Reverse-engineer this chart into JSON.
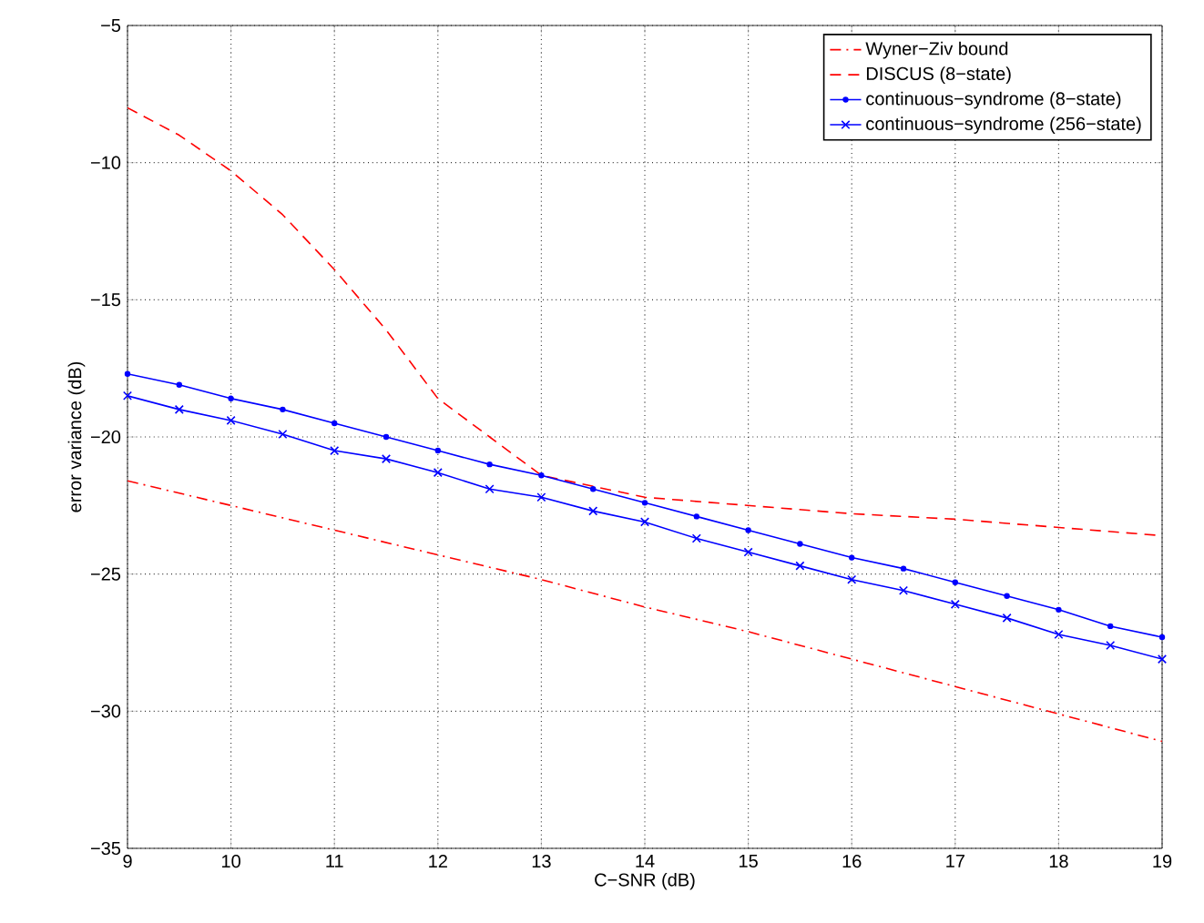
{
  "chart_data": {
    "type": "line",
    "xlabel": "C−SNR (dB)",
    "ylabel": "error variance (dB)",
    "xlim": [
      9,
      19
    ],
    "xticks": [
      9,
      10,
      11,
      12,
      13,
      14,
      15,
      16,
      17,
      18,
      19
    ],
    "ylim": [
      -35,
      -5
    ],
    "yticks": [
      {
        "value": -35,
        "label": "−35"
      },
      {
        "value": -30,
        "label": "−30"
      },
      {
        "value": -25,
        "label": "−25"
      },
      {
        "value": -20,
        "label": "−20"
      },
      {
        "value": -15,
        "label": "−15"
      },
      {
        "value": -10,
        "label": "−10"
      },
      {
        "value": -5,
        "label": "−5"
      }
    ],
    "grid": true,
    "legend": "top right",
    "series": [
      {
        "name": "Wyner−Ziv bound",
        "color": "#ff0000",
        "line_style": "dashdot",
        "marker": "none",
        "x": [
          9,
          10,
          11,
          12,
          13,
          14,
          15,
          16,
          17,
          18,
          19
        ],
        "values": [
          -21.6,
          -22.5,
          -23.4,
          -24.3,
          -25.2,
          -26.2,
          -27.1,
          -28.1,
          -29.1,
          -30.1,
          -31.1
        ]
      },
      {
        "name": "DISCUS (8−state)",
        "color": "#ff0000",
        "line_style": "dashed",
        "marker": "none",
        "x": [
          9,
          9.5,
          10,
          10.5,
          11,
          11.5,
          12,
          12.5,
          13,
          13.5,
          14,
          15,
          16,
          17,
          18,
          19
        ],
        "values": [
          -8.0,
          -9.0,
          -10.3,
          -11.9,
          -13.9,
          -16.1,
          -18.6,
          -20.0,
          -21.4,
          -21.8,
          -22.2,
          -22.5,
          -22.8,
          -23.0,
          -23.3,
          -23.6
        ]
      },
      {
        "name": "continuous−syndrome (8−state)",
        "color": "#0000ff",
        "line_style": "solid",
        "marker": "dot",
        "x": [
          9,
          9.5,
          10,
          10.5,
          11,
          11.5,
          12,
          12.5,
          13,
          13.5,
          14,
          14.5,
          15,
          15.5,
          16,
          16.5,
          17,
          17.5,
          18,
          18.5,
          19
        ],
        "values": [
          -17.7,
          -18.1,
          -18.6,
          -19.0,
          -19.5,
          -20.0,
          -20.5,
          -21.0,
          -21.4,
          -21.9,
          -22.4,
          -22.9,
          -23.4,
          -23.9,
          -24.4,
          -24.8,
          -25.3,
          -25.8,
          -26.3,
          -26.9,
          -27.3
        ]
      },
      {
        "name": "continuous−syndrome (256−state)",
        "color": "#0000ff",
        "line_style": "solid",
        "marker": "cross",
        "x": [
          9,
          9.5,
          10,
          10.5,
          11,
          11.5,
          12,
          12.5,
          13,
          13.5,
          14,
          14.5,
          15,
          15.5,
          16,
          16.5,
          17,
          17.5,
          18,
          18.5,
          19
        ],
        "values": [
          -18.5,
          -19.0,
          -19.4,
          -19.9,
          -20.5,
          -20.8,
          -21.3,
          -21.9,
          -22.2,
          -22.7,
          -23.1,
          -23.7,
          -24.2,
          -24.7,
          -25.2,
          -25.6,
          -26.1,
          -26.6,
          -27.2,
          -27.6,
          -28.1
        ]
      }
    ]
  }
}
